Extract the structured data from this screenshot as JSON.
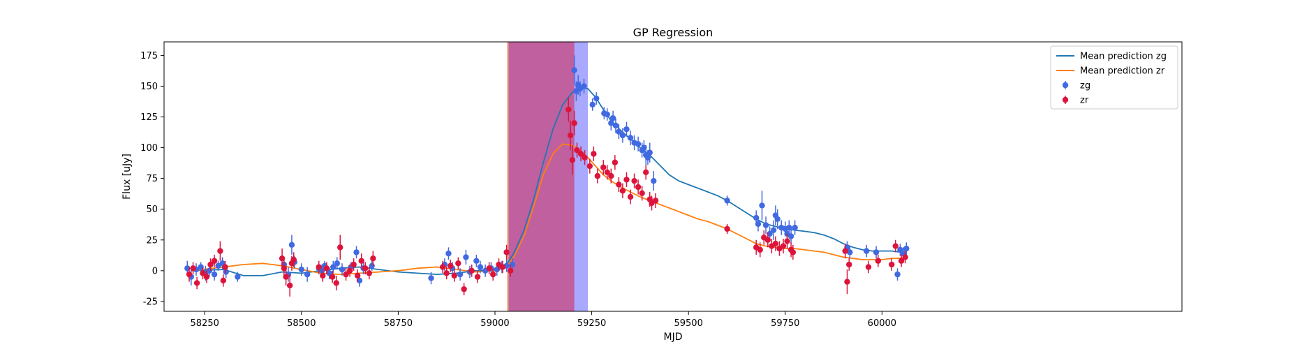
{
  "chart_data": {
    "type": "scatter",
    "title": "GP Regression",
    "xlabel": "MJD",
    "ylabel": "Flux [uJy]",
    "xlim": [
      58145,
      60775
    ],
    "ylim": [
      -33,
      186
    ],
    "xticks": [
      58250,
      58500,
      58750,
      59000,
      59250,
      59500,
      59750,
      60000
    ],
    "yticks": [
      -25,
      0,
      25,
      50,
      75,
      100,
      125,
      150,
      175
    ],
    "grid": false,
    "legend_position": "top-right",
    "colors": {
      "zg_line": "#1f77b4",
      "zr_line": "#ff7f0e",
      "zg_points": "#4169e1",
      "zr_points": "#dc143c",
      "span_zr": "#c0609f",
      "span_zg": "#a9a9ff",
      "span_edge": "#f0a070"
    },
    "spans": [
      {
        "series": "zg",
        "x0": 59035,
        "x1": 59240
      },
      {
        "series": "zr",
        "x0": 59035,
        "x1": 59205
      }
    ],
    "series": [
      {
        "name": "Mean prediction zg",
        "kind": "line",
        "color": "#1f77b4",
        "x": [
          58215,
          58300,
          58350,
          58400,
          58450,
          58500,
          58550,
          58600,
          58650,
          58700,
          58750,
          58800,
          58850,
          58900,
          58950,
          59000,
          59030,
          59050,
          59075,
          59100,
          59125,
          59150,
          59175,
          59200,
          59220,
          59240,
          59260,
          59280,
          59300,
          59325,
          59350,
          59375,
          59400,
          59425,
          59450,
          59475,
          59500,
          59525,
          59550,
          59575,
          59600,
          59625,
          59650,
          59675,
          59700,
          59725,
          59750,
          59775,
          59800,
          59825,
          59850,
          59875,
          59900,
          59925,
          59950,
          59975,
          60000,
          60025,
          60050,
          60063
        ],
        "y": [
          0,
          1,
          -4,
          -4,
          -1,
          -2,
          0,
          2,
          3,
          1,
          -1,
          -2,
          -3,
          -2,
          0,
          1,
          5,
          15,
          33,
          58,
          88,
          115,
          135,
          145,
          149,
          148,
          141,
          131,
          122,
          114,
          107,
          100,
          94,
          86,
          78,
          73,
          70,
          67,
          64,
          61,
          57,
          52,
          47,
          42,
          38,
          36,
          34,
          33,
          32,
          31,
          29,
          26,
          22,
          19,
          17,
          16,
          16,
          16,
          15,
          13
        ]
      },
      {
        "name": "Mean prediction zr",
        "kind": "line",
        "color": "#ff7f0e",
        "x": [
          58215,
          58300,
          58350,
          58400,
          58450,
          58500,
          58550,
          58600,
          58650,
          58700,
          58750,
          58800,
          58850,
          58900,
          58950,
          59000,
          59030,
          59050,
          59075,
          59100,
          59125,
          59150,
          59175,
          59200,
          59220,
          59240,
          59260,
          59280,
          59300,
          59325,
          59350,
          59375,
          59400,
          59425,
          59450,
          59475,
          59500,
          59525,
          59550,
          59575,
          59600,
          59625,
          59650,
          59675,
          59700,
          59725,
          59750,
          59775,
          59800,
          59825,
          59850,
          59875,
          59900,
          59925,
          59950,
          59975,
          60000,
          60025,
          60050,
          60063
        ],
        "y": [
          0,
          3,
          5,
          6,
          4,
          1,
          -2,
          -3,
          -2,
          -1,
          0,
          2,
          3,
          1,
          -1,
          0,
          3,
          12,
          28,
          52,
          78,
          95,
          103,
          102,
          98,
          92,
          85,
          78,
          73,
          68,
          64,
          60,
          57,
          54,
          51,
          48,
          45,
          42,
          40,
          37,
          34,
          30,
          26,
          22,
          20,
          19,
          18,
          18,
          17,
          16,
          15,
          13,
          11,
          10,
          9,
          9,
          9,
          10,
          10,
          10
        ]
      },
      {
        "name": "zg",
        "kind": "errorbar",
        "color": "#4169e1",
        "x": [
          58205,
          58215,
          58228,
          58240,
          58252,
          58262,
          58275,
          58285,
          58296,
          58305,
          58335,
          58455,
          58466,
          58475,
          58482,
          58500,
          58515,
          58545,
          58553,
          58560,
          58572,
          58582,
          58592,
          58605,
          58628,
          58642,
          58650,
          58660,
          58682,
          58835,
          58870,
          58880,
          58890,
          58910,
          58925,
          58935,
          58952,
          58962,
          58975,
          58990,
          59005,
          59018,
          59030,
          59045,
          59205,
          59210,
          59215,
          59220,
          59230,
          59252,
          59262,
          59282,
          59290,
          59300,
          59305,
          59312,
          59320,
          59330,
          59340,
          59350,
          59360,
          59370,
          59380,
          59385,
          59390,
          59395,
          59400,
          59410,
          59600,
          59675,
          59680,
          59690,
          59700,
          59710,
          59720,
          59725,
          59730,
          59740,
          59750,
          59755,
          59760,
          59765,
          59775,
          59910,
          59917,
          59960,
          59985,
          60040,
          60047,
          60055,
          60063
        ],
        "y": [
          2,
          -5,
          1,
          3,
          -2,
          0,
          -3,
          4,
          6,
          -1,
          -5,
          5,
          -3,
          21,
          7,
          1,
          -3,
          2,
          0,
          4,
          -2,
          3,
          6,
          1,
          3,
          15,
          -8,
          2,
          4,
          -6,
          5,
          14,
          2,
          -3,
          11,
          -1,
          8,
          3,
          0,
          2,
          1,
          3,
          4,
          5,
          163,
          146,
          151,
          148,
          150,
          135,
          140,
          128,
          127,
          120,
          124,
          118,
          113,
          110,
          115,
          108,
          104,
          103,
          98,
          100,
          94,
          92,
          96,
          73,
          57,
          43,
          38,
          53,
          37,
          30,
          33,
          45,
          42,
          35,
          34,
          30,
          35,
          28,
          35,
          19,
          15,
          16,
          15,
          -3,
          17,
          14,
          18
        ],
        "err": [
          6,
          7,
          5,
          4,
          6,
          5,
          5,
          4,
          5,
          5,
          4,
          6,
          6,
          8,
          5,
          5,
          6,
          5,
          5,
          4,
          5,
          5,
          5,
          5,
          4,
          5,
          5,
          5,
          4,
          5,
          5,
          5,
          5,
          5,
          6,
          5,
          5,
          5,
          5,
          5,
          5,
          5,
          5,
          5,
          12,
          8,
          8,
          6,
          6,
          5,
          5,
          5,
          5,
          6,
          6,
          6,
          6,
          6,
          6,
          6,
          6,
          6,
          6,
          6,
          8,
          6,
          8,
          8,
          4,
          6,
          6,
          12,
          7,
          6,
          8,
          8,
          8,
          6,
          6,
          6,
          6,
          6,
          6,
          5,
          5,
          5,
          5,
          5,
          5,
          5,
          5
        ]
      },
      {
        "name": "zr",
        "kind": "errorbar",
        "color": "#dc143c",
        "x": [
          58210,
          58220,
          58230,
          58245,
          58255,
          58265,
          58275,
          58290,
          58298,
          58303,
          58450,
          58455,
          58460,
          58470,
          58475,
          58480,
          58545,
          58555,
          58565,
          58580,
          58590,
          58600,
          58615,
          58625,
          58635,
          58645,
          58655,
          58665,
          58675,
          58685,
          58865,
          58875,
          58885,
          58895,
          58905,
          58920,
          58940,
          58955,
          58985,
          58995,
          59010,
          59020,
          59030,
          59040,
          59190,
          59195,
          59200,
          59205,
          59212,
          59222,
          59232,
          59245,
          59255,
          59265,
          59280,
          59290,
          59300,
          59310,
          59320,
          59330,
          59340,
          59350,
          59360,
          59370,
          59380,
          59390,
          59400,
          59405,
          59415,
          59600,
          59675,
          59685,
          59695,
          59705,
          59715,
          59725,
          59735,
          59745,
          59755,
          59765,
          59770,
          59905,
          59910,
          59915,
          59965,
          59990,
          60025,
          60035,
          60050,
          60060
        ],
        "y": [
          -3,
          2,
          -10,
          -2,
          -5,
          5,
          8,
          16,
          -8,
          3,
          10,
          2,
          -5,
          -12,
          6,
          9,
          3,
          -4,
          2,
          -5,
          -10,
          19,
          -3,
          0,
          5,
          -4,
          8,
          2,
          -2,
          10,
          3,
          -2,
          4,
          -4,
          6,
          -15,
          0,
          -5,
          2,
          -3,
          5,
          3,
          15,
          0,
          131,
          110,
          90,
          120,
          98,
          95,
          92,
          85,
          95,
          77,
          84,
          80,
          77,
          88,
          70,
          65,
          74,
          60,
          73,
          68,
          63,
          80,
          58,
          55,
          57,
          34,
          19,
          17,
          27,
          25,
          20,
          22,
          18,
          20,
          24,
          17,
          15,
          16,
          -9,
          5,
          3,
          8,
          5,
          20,
          8,
          11
        ],
        "err": [
          6,
          5,
          5,
          5,
          5,
          5,
          5,
          8,
          5,
          5,
          8,
          6,
          7,
          9,
          6,
          6,
          5,
          5,
          5,
          5,
          6,
          10,
          5,
          5,
          5,
          5,
          6,
          5,
          5,
          6,
          5,
          5,
          5,
          5,
          5,
          5,
          5,
          5,
          5,
          5,
          5,
          5,
          6,
          5,
          10,
          12,
          12,
          10,
          6,
          6,
          6,
          6,
          6,
          6,
          6,
          6,
          6,
          6,
          6,
          6,
          6,
          6,
          6,
          6,
          6,
          6,
          6,
          6,
          6,
          4,
          6,
          6,
          6,
          6,
          6,
          6,
          6,
          6,
          6,
          6,
          6,
          6,
          10,
          5,
          5,
          5,
          5,
          5,
          5,
          5
        ]
      }
    ]
  }
}
